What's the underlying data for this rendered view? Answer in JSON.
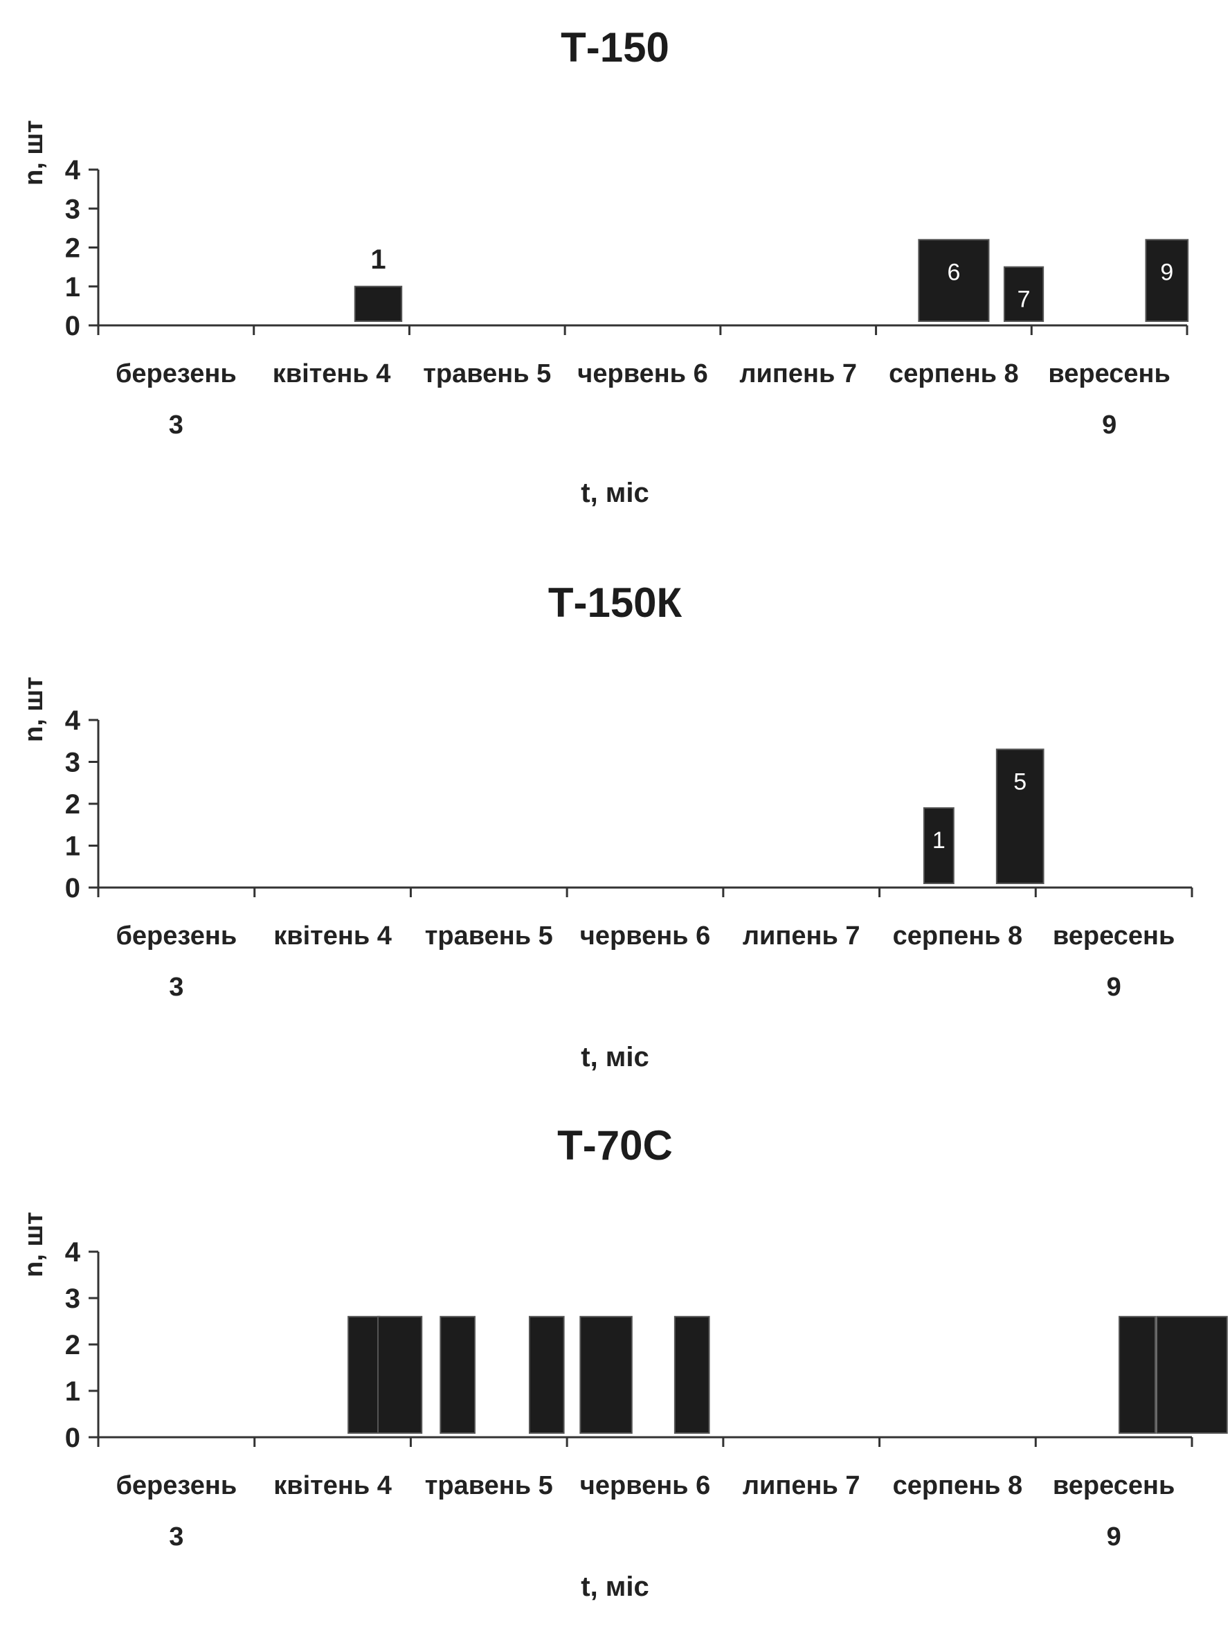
{
  "chart_data": [
    {
      "type": "bar",
      "title": "Т-150",
      "ylabel": "n, шт",
      "xlabel": "t, міс",
      "ylim": [
        0,
        4
      ],
      "yticks": [
        0,
        1,
        2,
        3,
        4
      ],
      "categories": [
        "березень 3",
        "квітень 4",
        "травень 5",
        "червень 6",
        "липень 7",
        "серпень 8",
        "вересень 9"
      ],
      "bars": [
        {
          "month": 4.3,
          "width": 0.3,
          "value": 1,
          "label": "1",
          "label_position": "above"
        },
        {
          "month": 8.0,
          "width": 0.45,
          "value": 2.2,
          "label": "6",
          "label_position": "inside"
        },
        {
          "month": 8.45,
          "width": 0.25,
          "value": 1.5,
          "label": "7",
          "label_position": "inside"
        },
        {
          "month": 9.37,
          "width": 0.27,
          "value": 2.2,
          "label": "9",
          "label_position": "inside"
        }
      ],
      "bar_color": "#1c1c1c"
    },
    {
      "type": "bar",
      "title": "Т-150К",
      "ylabel": "n, шт",
      "xlabel": "t, міс",
      "ylim": [
        0,
        4
      ],
      "yticks": [
        0,
        1,
        2,
        3,
        4
      ],
      "categories": [
        "березень 3",
        "квітень 4",
        "травень 5",
        "червень 6",
        "липень 7",
        "серпень 8",
        "вересень 9"
      ],
      "bars": [
        {
          "month": 7.88,
          "width": 0.19,
          "value": 1.9,
          "label": "1",
          "label_position": "inside"
        },
        {
          "month": 8.4,
          "width": 0.3,
          "value": 3.3,
          "label": "5",
          "label_position": "inside"
        }
      ],
      "bar_color": "#1c1c1c"
    },
    {
      "type": "bar",
      "title": "Т-70С",
      "ylabel": "n, шт",
      "xlabel": "t, міс",
      "ylim": [
        0,
        4
      ],
      "yticks": [
        0,
        1,
        2,
        3,
        4
      ],
      "categories": [
        "березень 3",
        "квітень 4",
        "травень 5",
        "червень 6",
        "липень 7",
        "серпень 8",
        "вересень 9"
      ],
      "bars": [
        {
          "month": 4.2,
          "width": 0.2,
          "value": 2.6,
          "label": "",
          "label_position": "none"
        },
        {
          "month": 4.43,
          "width": 0.28,
          "value": 2.6,
          "label": "",
          "label_position": "none"
        },
        {
          "month": 4.8,
          "width": 0.22,
          "value": 2.6,
          "label": "",
          "label_position": "none"
        },
        {
          "month": 5.37,
          "width": 0.22,
          "value": 2.6,
          "label": "",
          "label_position": "none"
        },
        {
          "month": 5.75,
          "width": 0.33,
          "value": 2.6,
          "label": "",
          "label_position": "none"
        },
        {
          "month": 6.3,
          "width": 0.22,
          "value": 2.6,
          "label": "",
          "label_position": "none"
        },
        {
          "month": 9.15,
          "width": 0.23,
          "value": 2.6,
          "label": "",
          "label_position": "none"
        },
        {
          "month": 9.5,
          "width": 0.45,
          "value": 2.6,
          "label": "",
          "label_position": "none"
        }
      ],
      "bar_color": "#1c1c1c"
    }
  ]
}
